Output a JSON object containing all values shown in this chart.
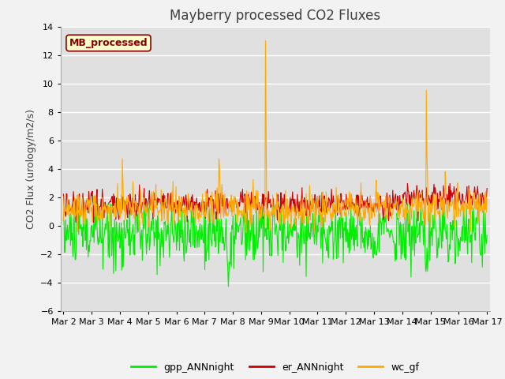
{
  "title": "Mayberry processed CO2 Fluxes",
  "ylabel": "CO2 Flux (urology/m2/s)",
  "ylim": [
    -6,
    14
  ],
  "yticks": [
    -6,
    -4,
    -2,
    0,
    2,
    4,
    6,
    8,
    10,
    12,
    14
  ],
  "xtick_labels": [
    "Mar 2",
    "Mar 3",
    "Mar 4",
    "Mar 5",
    "Mar 6",
    "Mar 7",
    "Mar 8",
    "Mar 9",
    "Mar 10",
    "Mar 11",
    "Mar 12",
    "Mar 13",
    "Mar 14",
    "Mar 15",
    "Mar 16",
    "Mar 17"
  ],
  "xtick_positions": [
    0,
    1,
    2,
    3,
    4,
    5,
    6,
    7,
    8,
    9,
    10,
    11,
    12,
    13,
    14,
    15
  ],
  "color_gpp": "#00ee00",
  "color_er": "#cc0000",
  "color_wc": "#ffaa00",
  "legend_label_gpp": "gpp_ANNnight",
  "legend_label_er": "er_ANNnight",
  "legend_label_wc": "wc_gf",
  "inset_label": "MB_processed",
  "inset_bg": "#ffffcc",
  "inset_border": "#880000",
  "background_color": "#e8e8e8",
  "plot_bg": "#e0e0e0",
  "grid_color": "#ffffff",
  "title_fontsize": 12,
  "axis_fontsize": 9,
  "tick_fontsize": 8,
  "legend_fontsize": 9
}
